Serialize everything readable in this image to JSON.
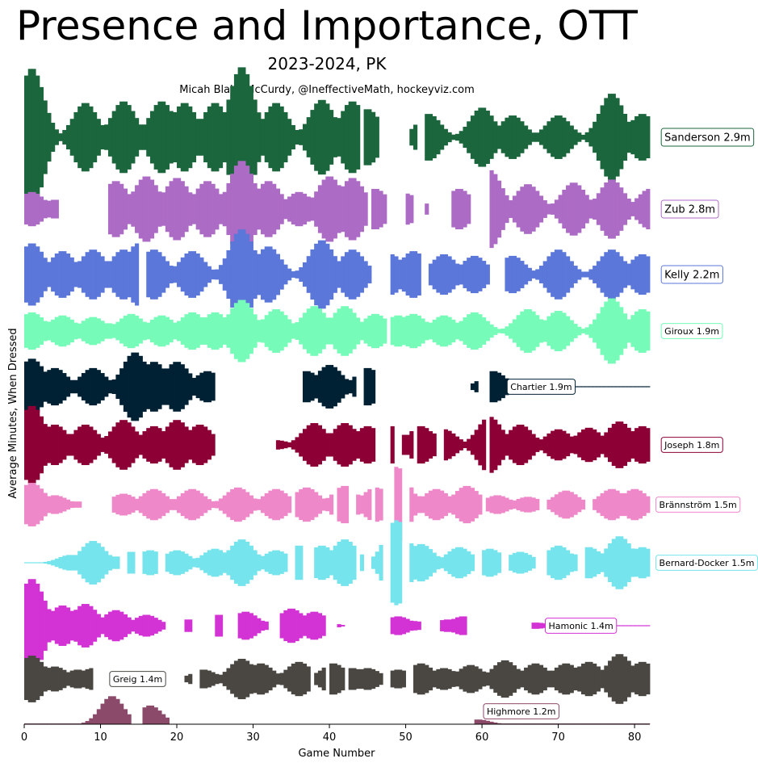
{
  "title": "Presence and Importance, OTT",
  "subtitle": "2023-2024, PK",
  "credit": "Micah Blake McCurdy, @IneffectiveMath, hockeyviz.com",
  "chart_data": {
    "type": "area",
    "xlabel": "Game Number",
    "ylabel": "Average Minutes, When Dressed",
    "xlim": [
      0,
      82
    ],
    "xticks": [
      0,
      10,
      20,
      30,
      40,
      50,
      60,
      70,
      80
    ],
    "series": [
      {
        "name": "Sanderson 2.9m",
        "color": "#1b663c",
        "label_x": 83.5,
        "label_size": "large",
        "shape": "full",
        "peaks": [
          [
            1,
            4.4
          ],
          [
            8,
            2.2
          ],
          [
            13,
            2.3
          ],
          [
            18,
            2.3
          ],
          [
            21,
            2.2
          ],
          [
            25,
            2.2
          ],
          [
            28.5,
            4.5
          ],
          [
            33,
            2.2
          ],
          [
            39,
            2.4
          ],
          [
            43,
            2.3
          ],
          [
            45,
            1.8
          ],
          [
            49,
            0
          ],
          [
            53,
            1.5
          ],
          [
            60,
            1.9
          ],
          [
            64,
            1.4
          ],
          [
            70,
            1.4
          ],
          [
            77,
            2.8
          ],
          [
            81,
            1.5
          ]
        ],
        "gaps": [
          [
            44,
            44.6
          ],
          [
            46.5,
            50.5
          ],
          [
            51.5,
            52.5
          ]
        ]
      },
      {
        "name": "Zub 2.8m",
        "color": "#ac6bc4",
        "label_x": 83.5,
        "label_size": "large",
        "shape": "full",
        "peaks": [
          [
            1,
            1.1
          ],
          [
            4,
            0.6
          ],
          [
            12,
            1.8
          ],
          [
            16,
            2.1
          ],
          [
            20,
            2.0
          ],
          [
            24,
            1.8
          ],
          [
            28.5,
            3.1
          ],
          [
            32,
            1.8
          ],
          [
            36,
            1.1
          ],
          [
            40,
            2.1
          ],
          [
            43,
            2.0
          ],
          [
            46,
            1.3
          ],
          [
            50,
            1.0
          ],
          [
            55,
            1.0
          ],
          [
            57,
            1.3
          ],
          [
            61,
            2.5
          ],
          [
            66,
            1.6
          ],
          [
            72,
            1.7
          ],
          [
            77,
            1.9
          ],
          [
            82,
            1.3
          ]
        ],
        "gaps": [
          [
            4.3,
            11
          ],
          [
            44.8,
            45.5
          ],
          [
            47.5,
            50
          ],
          [
            51,
            52.3
          ],
          [
            53,
            56.2
          ],
          [
            58.3,
            61.1
          ]
        ]
      },
      {
        "name": "Kelly 2.2m",
        "color": "#5b77d9",
        "label_x": 83.5,
        "label_size": "large",
        "shape": "full",
        "peaks": [
          [
            1,
            2.0
          ],
          [
            5,
            1.5
          ],
          [
            9,
            1.6
          ],
          [
            13,
            1.6
          ],
          [
            15,
            2.0
          ],
          [
            17,
            1.6
          ],
          [
            22,
            1.5
          ],
          [
            28.5,
            2.9
          ],
          [
            32,
            1.8
          ],
          [
            39,
            2.2
          ],
          [
            43,
            1.6
          ],
          [
            48,
            1.3
          ],
          [
            51,
            1.5
          ],
          [
            55,
            1.3
          ],
          [
            59,
            1.2
          ],
          [
            64,
            1.2
          ],
          [
            70,
            1.6
          ],
          [
            77,
            1.6
          ],
          [
            81,
            1.3
          ]
        ],
        "gaps": [
          [
            15.2,
            16
          ],
          [
            45.5,
            48
          ],
          [
            52.2,
            53
          ],
          [
            60.8,
            63
          ]
        ]
      },
      {
        "name": "Giroux 1.9m",
        "color": "#76fcb8",
        "label_x": 83.5,
        "label_size": "small",
        "shape": "full",
        "peaks": [
          [
            1,
            1.2
          ],
          [
            3,
            0.6
          ],
          [
            5,
            1.0
          ],
          [
            9,
            0.9
          ],
          [
            11,
            0.5
          ],
          [
            14,
            1.1
          ],
          [
            18,
            1.0
          ],
          [
            22,
            1.2
          ],
          [
            25,
            1.2
          ],
          [
            28.5,
            2.0
          ],
          [
            33,
            1.4
          ],
          [
            38,
            1.6
          ],
          [
            42,
            1.6
          ],
          [
            46,
            1.1
          ],
          [
            49,
            1.0
          ],
          [
            51,
            1.1
          ],
          [
            55,
            1.0
          ],
          [
            59,
            1.2
          ],
          [
            66,
            1.4
          ],
          [
            70,
            1.3
          ],
          [
            77,
            2.1
          ],
          [
            81,
            1.4
          ]
        ],
        "gaps": [
          [
            47.3,
            48
          ]
        ]
      },
      {
        "name": "Chartier 1.9m",
        "color": "#002033",
        "label_x": 63.3,
        "label_size": "small",
        "shape": "full",
        "peaks": [
          [
            1,
            1.8
          ],
          [
            4,
            1.2
          ],
          [
            9,
            1.2
          ],
          [
            14.5,
            2.2
          ],
          [
            17,
            1.6
          ],
          [
            20,
            1.6
          ],
          [
            24,
            1.0
          ],
          [
            37,
            1.0
          ],
          [
            40,
            1.4
          ],
          [
            45,
            1.2
          ],
          [
            59,
            0.1
          ],
          [
            61.5,
            1.0
          ]
        ],
        "gaps": [
          [
            25,
            36.5
          ],
          [
            43.6,
            44.3
          ],
          [
            46,
            58.5
          ],
          [
            59.7,
            61
          ]
        ]
      },
      {
        "name": "Joseph 1.8m",
        "color": "#8c0036",
        "label_x": 83.5,
        "label_size": "small",
        "shape": "full",
        "peaks": [
          [
            1,
            2.5
          ],
          [
            4,
            1.3
          ],
          [
            8,
            1.3
          ],
          [
            13,
            1.6
          ],
          [
            17,
            1.2
          ],
          [
            20,
            1.6
          ],
          [
            23,
            1.3
          ],
          [
            33,
            0.3
          ],
          [
            38,
            1.4
          ],
          [
            42,
            1.4
          ],
          [
            45,
            1.2
          ],
          [
            48,
            1.2
          ],
          [
            50,
            0.6
          ],
          [
            52,
            1.2
          ],
          [
            55,
            1.0
          ],
          [
            59,
            0.2
          ],
          [
            61,
            1.8
          ],
          [
            65,
            1.3
          ],
          [
            70,
            1.0
          ],
          [
            74,
            1.1
          ],
          [
            78,
            1.5
          ],
          [
            81,
            1.2
          ]
        ],
        "gaps": [
          [
            25,
            33
          ],
          [
            46,
            47.8
          ],
          [
            48.6,
            49.5
          ],
          [
            51,
            51.6
          ],
          [
            54.2,
            54.9
          ],
          [
            60.3,
            61
          ]
        ]
      },
      {
        "name": "Brännström 1.5m",
        "color": "#ef88c8",
        "label_x": 82.8,
        "label_size": "small",
        "shape": "full",
        "peaks": [
          [
            1,
            1.4
          ],
          [
            4,
            0.6
          ],
          [
            7,
            0.2
          ],
          [
            13,
            0.7
          ],
          [
            17,
            1.0
          ],
          [
            22,
            1.0
          ],
          [
            28,
            1.1
          ],
          [
            33,
            1.0
          ],
          [
            37,
            1.1
          ],
          [
            42,
            1.2
          ],
          [
            46,
            1.1
          ],
          [
            48.8,
            2.4
          ],
          [
            51,
            0.6
          ],
          [
            54,
            1.0
          ],
          [
            58,
            1.2
          ],
          [
            62,
            0.6
          ],
          [
            66,
            0.5
          ],
          [
            71,
            0.9
          ],
          [
            77,
            1.0
          ],
          [
            80,
            1.0
          ]
        ],
        "gaps": [
          [
            7.4,
            11.5
          ],
          [
            35,
            35.6
          ],
          [
            40.5,
            41
          ],
          [
            42.7,
            43.3
          ],
          [
            45.6,
            46
          ],
          [
            47,
            48.3
          ],
          [
            49.4,
            50.5
          ],
          [
            60,
            60.7
          ],
          [
            67.5,
            68.3
          ],
          [
            73.3,
            74.5
          ]
        ]
      },
      {
        "name": "Bernard-Docker 1.5m",
        "color": "#76e4ec",
        "label_x": 82.8,
        "label_size": "small",
        "shape": "full",
        "peaks": [
          [
            6,
            0.5
          ],
          [
            9,
            1.4
          ],
          [
            12,
            0.4
          ],
          [
            14,
            0.7
          ],
          [
            16.5,
            0.8
          ],
          [
            20,
            0.8
          ],
          [
            25,
            0.9
          ],
          [
            28.5,
            1.5
          ],
          [
            33,
            0.8
          ],
          [
            36,
            1.1
          ],
          [
            39,
            1.1
          ],
          [
            42,
            1.5
          ],
          [
            46,
            0.4
          ],
          [
            48.8,
            2.7
          ],
          [
            52,
            1.2
          ],
          [
            57,
            1.0
          ],
          [
            61,
            0.9
          ],
          [
            65,
            0.7
          ],
          [
            70,
            1.1
          ],
          [
            74,
            1.0
          ],
          [
            78,
            1.7
          ],
          [
            81,
            1.0
          ]
        ],
        "gaps": [
          [
            12.5,
            13.3
          ],
          [
            14.5,
            15.5
          ],
          [
            16,
            16.2
          ],
          [
            17.4,
            18.3
          ],
          [
            34.6,
            35.4
          ],
          [
            36.6,
            38.2
          ],
          [
            43.3,
            44
          ],
          [
            44.6,
            45.4
          ],
          [
            47.2,
            48.2
          ],
          [
            49.4,
            50.7
          ],
          [
            59.2,
            60
          ],
          [
            62.5,
            63.6
          ],
          [
            66.8,
            68.3
          ],
          [
            72.5,
            73.5
          ]
        ]
      },
      {
        "name": "Hamonic 1.4m",
        "color": "#d332d4",
        "label_x": 68.3,
        "label_size": "small",
        "shape": "full",
        "peaks": [
          [
            1,
            3.0
          ],
          [
            5,
            1.3
          ],
          [
            8,
            1.4
          ],
          [
            12,
            1.0
          ],
          [
            16,
            0.7
          ],
          [
            18,
            0.2
          ],
          [
            21.5,
            0.4
          ],
          [
            25.5,
            0.7
          ],
          [
            29,
            0.9
          ],
          [
            31,
            0.3
          ],
          [
            35,
            1.1
          ],
          [
            38,
            0.9
          ],
          [
            41.5,
            0.05
          ],
          [
            49,
            0.6
          ],
          [
            51,
            0.3
          ],
          [
            55.5,
            0.4
          ],
          [
            57.5,
            0.6
          ],
          [
            67,
            0.2
          ]
        ],
        "gaps": [
          [
            18.5,
            20.8
          ],
          [
            22.2,
            25
          ],
          [
            26.2,
            28
          ],
          [
            32,
            33.3
          ],
          [
            39.3,
            41
          ],
          [
            42,
            48
          ],
          [
            51.8,
            54.6
          ],
          [
            56.3,
            56.7
          ],
          [
            58.2,
            66.5
          ]
        ]
      },
      {
        "name": "Greig 1.4m",
        "color": "#4a4742",
        "label_x": 11.2,
        "label_size": "small",
        "shape": "full",
        "peaks": [
          [
            1,
            1.5
          ],
          [
            4,
            0.8
          ],
          [
            7,
            0.6
          ],
          [
            9,
            0.7
          ],
          [
            21.5,
            0.15
          ],
          [
            23.5,
            0.6
          ],
          [
            28.5,
            1.3
          ],
          [
            31,
            1.0
          ],
          [
            36,
            1.1
          ],
          [
            40.5,
            1.0
          ],
          [
            43,
            0.7
          ],
          [
            45,
            0.7
          ],
          [
            49,
            0.6
          ],
          [
            52,
            1.0
          ],
          [
            55,
            0.7
          ],
          [
            58.5,
            0.9
          ],
          [
            63,
            1.2
          ],
          [
            67,
            1.0
          ],
          [
            71,
            1.0
          ],
          [
            74,
            1.1
          ],
          [
            78,
            1.6
          ],
          [
            81,
            1.1
          ]
        ],
        "gaps": [
          [
            9.2,
            21.2
          ],
          [
            22,
            23
          ],
          [
            37.5,
            37.8
          ],
          [
            39.6,
            40.2
          ],
          [
            41.8,
            42.4
          ],
          [
            47,
            48
          ],
          [
            50,
            51
          ]
        ]
      },
      {
        "name": "Highmore 1.2m",
        "color": "#8c4a6a",
        "label_x": 60.2,
        "label_size": "small",
        "shape": "up",
        "peaks": [
          [
            11.5,
            1.2
          ],
          [
            13,
            0.4
          ],
          [
            16.5,
            0.8
          ],
          [
            18,
            0.3
          ],
          [
            59.5,
            0.2
          ]
        ],
        "gaps": [
          [
            14,
            15.3
          ],
          [
            19,
            59
          ]
        ]
      }
    ]
  }
}
